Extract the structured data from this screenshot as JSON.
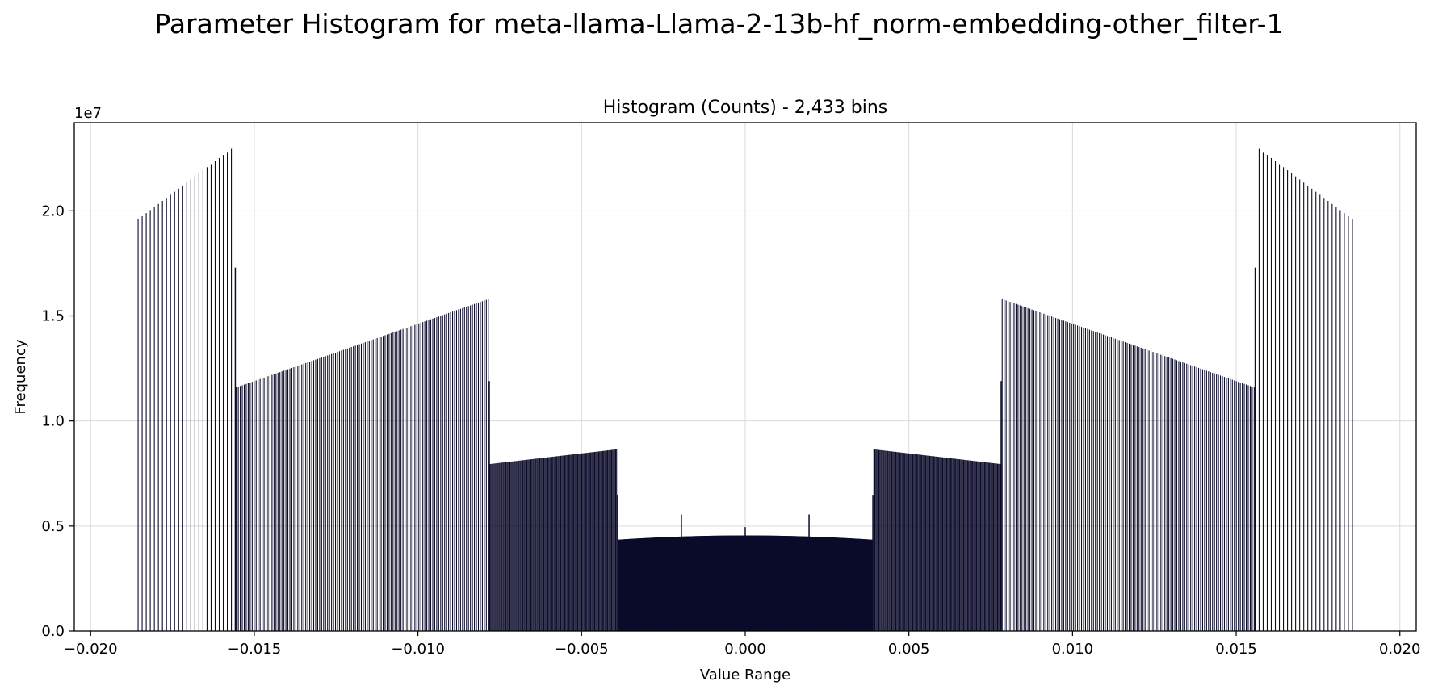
{
  "suptitle": "Parameter Histogram for meta-llama-Llama-2-13b-hf_norm-embedding-other_filter-1",
  "chart_data": {
    "type": "bar",
    "title": "Histogram (Counts) - 2,433 bins",
    "xlabel": "Value Range",
    "ylabel": "Frequency",
    "y_offset_label": "1e7",
    "xlim": [
      -0.0205,
      0.0205
    ],
    "ylim": [
      0,
      24200000
    ],
    "xticks": [
      -0.02,
      -0.015,
      -0.01,
      -0.005,
      0.0,
      0.005,
      0.01,
      0.015,
      0.02
    ],
    "xtick_labels": [
      "−0.020",
      "−0.015",
      "−0.010",
      "−0.005",
      "0.000",
      "0.005",
      "0.010",
      "0.015",
      "0.020"
    ],
    "yticks": [
      0,
      5000000,
      10000000,
      15000000,
      20000000
    ],
    "ytick_labels": [
      "0.0",
      "0.5",
      "1.0",
      "1.5",
      "2.0"
    ],
    "grid": true,
    "bar_color": "#0b0b2a",
    "bin_groups": [
      {
        "x_start": -0.01855,
        "x_end": -0.0157,
        "n": 24,
        "y_start": 19600000,
        "y_end": 22950000
      },
      {
        "x_start": -0.01555,
        "x_end": -0.00785,
        "n": 128,
        "y_start": 11600000,
        "y_end": 15800000
      },
      {
        "x_start": -0.0078,
        "x_end": -0.00393,
        "n": 128,
        "y_start": 7950000,
        "y_end": 8650000
      },
      {
        "x_start": -0.00388,
        "x_end": 0.00388,
        "n": 512,
        "y_start": 4350000,
        "y_end": 4350000,
        "y_mid": 4550000
      },
      {
        "x_start": 0.00393,
        "x_end": 0.0078,
        "n": 128,
        "y_start": 8650000,
        "y_end": 7950000
      },
      {
        "x_start": 0.00785,
        "x_end": 0.01555,
        "n": 128,
        "y_start": 15800000,
        "y_end": 11600000
      },
      {
        "x_start": 0.0157,
        "x_end": 0.01855,
        "n": 24,
        "y_start": 22950000,
        "y_end": 19600000
      }
    ],
    "isolated_bins": [
      {
        "x": -0.01558,
        "y": 17300000
      },
      {
        "x": -0.00782,
        "y": 11900000
      },
      {
        "x": -0.0039,
        "y": 6450000
      },
      {
        "x": -0.00195,
        "y": 5550000
      },
      {
        "x": 0.0,
        "y": 4950000
      },
      {
        "x": 0.00195,
        "y": 5550000
      },
      {
        "x": 0.0039,
        "y": 6450000
      },
      {
        "x": 0.00782,
        "y": 11900000
      },
      {
        "x": 0.01558,
        "y": 17300000
      }
    ]
  }
}
